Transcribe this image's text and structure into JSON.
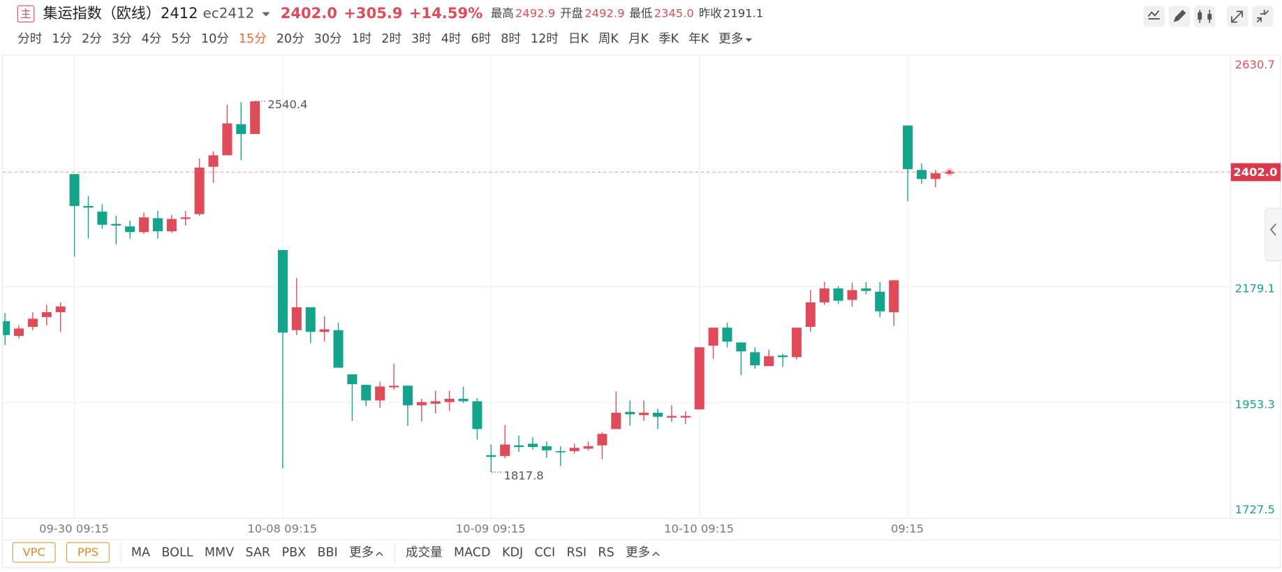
{
  "header": {
    "badge": "主",
    "title": "集运指数（欧线）2412",
    "code": "ec2412"
  },
  "quote": {
    "last": {
      "value": 2402.0,
      "label": "2402.0"
    },
    "change": "+305.9",
    "change_pct": "+14.59%",
    "high_label": "最高",
    "high": 2492.9,
    "open_label": "开盘",
    "open": 2492.9,
    "low_label": "最低",
    "low": {
      "value": 2345.0,
      "label": "2345.0"
    },
    "prev_close_label": "昨收",
    "prev_close": 2191.1
  },
  "timeframes": [
    "分时",
    "1分",
    "2分",
    "3分",
    "4分",
    "5分",
    "10分",
    "15分",
    "20分",
    "30分",
    "1时",
    "2时",
    "3时",
    "4时",
    "6时",
    "8时",
    "12时",
    "日K",
    "周K",
    "月K",
    "季K",
    "年K",
    "更多"
  ],
  "active_timeframe": "15分",
  "indicators": {
    "boxed": [
      "VPC",
      "PPS"
    ],
    "main": [
      "MA",
      "BOLL",
      "MMV",
      "SAR",
      "PBX",
      "BBI",
      "更多"
    ],
    "sub": [
      "成交量",
      "MACD",
      "KDJ",
      "CCI",
      "RSI",
      "RS",
      "更多"
    ]
  },
  "chart_data": {
    "type": "candlestick",
    "up_color": "#e04b5a",
    "down_color": "#12a58c",
    "grid": true,
    "ylim": [
      1727.5,
      2630.7
    ],
    "yticks": [
      2630.7,
      2179.1,
      1953.3,
      1727.5
    ],
    "categories": [
      null,
      null,
      null,
      null,
      null,
      "09-30 09:15",
      null,
      null,
      null,
      null,
      null,
      null,
      null,
      null,
      null,
      null,
      null,
      null,
      null,
      null,
      "10-08 09:15",
      null,
      null,
      null,
      null,
      null,
      null,
      null,
      null,
      null,
      null,
      null,
      null,
      null,
      null,
      "10-09 09:15",
      null,
      null,
      null,
      null,
      null,
      null,
      null,
      null,
      null,
      null,
      null,
      null,
      null,
      null,
      "10-10 09:15",
      null,
      null,
      null,
      null,
      null,
      null,
      null,
      null,
      null,
      null,
      null,
      null,
      null,
      null,
      "09:15",
      null,
      null,
      null
    ],
    "open": [
      2111.8,
      2083.1,
      2100.7,
      2119.8,
      2129.3,
      2398.3,
      2336.2,
      2325.1,
      2301.2,
      2296.4,
      2285.3,
      2312.3,
      2286.9,
      2310.8,
      2320.3,
      2412.6,
      2434.9,
      2495.4,
      2476.3,
      null,
      2250.3,
      2094.3,
      2138.9,
      2091.1,
      2094.3,
      2008.3,
      1987.7,
      1957.4,
      1982.9,
      1986.1,
      1947.9,
      1951.0,
      1954.2,
      1960.6,
      1955.8,
      1850.8,
      1849.2,
      1869.9,
      1873.1,
      1868.3,
      1858.7,
      1858.7,
      1863.5,
      1869.9,
      1901.7,
      1935.1,
      1928.8,
      1933.5,
      1924.0,
      1924.0,
      1939.9,
      2064.1,
      2099.1,
      2070.4,
      2051.3,
      2024.3,
      2045.0,
      2041.8,
      2100.7,
      2148.4,
      2175.5,
      2153.2,
      2175.5,
      2169.1,
      2129.3,
      2492.9,
      2406.2,
      2388.7,
      2400.4
    ],
    "high": [
      2127.7,
      2103.8,
      2129.3,
      2143.6,
      2148.4,
      2398.3,
      2355.3,
      2339.4,
      2317.1,
      2307.6,
      2323.5,
      2326.7,
      2318.7,
      2326.7,
      2428.5,
      2442.9,
      2533.6,
      2538.3,
      2540.4,
      null,
      2250.3,
      2196.2,
      2138.9,
      2121.3,
      2108.6,
      2008.3,
      1987.7,
      1994.0,
      2029.0,
      1986.1,
      1960.6,
      1976.5,
      1976.5,
      1984.5,
      1962.2,
      1871.5,
      1909.7,
      1889.0,
      1885.8,
      1877.8,
      1868.3,
      1873.1,
      1877.8,
      1895.3,
      1974.9,
      1957.4,
      1957.4,
      1941.5,
      1947.9,
      1936.7,
      2060.9,
      2099.1,
      2108.6,
      2070.4,
      2060.9,
      2056.1,
      2048.1,
      2099.1,
      2172.3,
      2188.2,
      2180.2,
      2186.6,
      2188.2,
      2188.2,
      2191.4,
      2492.9,
      2419.0,
      2406.2,
      2403.6
    ],
    "low": [
      2065.6,
      2078.4,
      2094.3,
      2103.8,
      2091.1,
      2237.5,
      2272.6,
      2291.7,
      2261.4,
      2272.6,
      2282.1,
      2272.6,
      2283.7,
      2298.0,
      2317.1,
      2380.8,
      2434.9,
      2425.3,
      2476.3,
      null,
      1825.3,
      2084.7,
      2068.8,
      2072.0,
      2021.1,
      1917.6,
      1946.3,
      1943.1,
      1978.1,
      1908.1,
      1916.0,
      1932.0,
      1936.7,
      1952.6,
      1881.0,
      1817.8,
      1844.4,
      1857.2,
      1861.9,
      1846.0,
      1830.1,
      1854.0,
      1860.3,
      1842.8,
      1901.7,
      1908.1,
      1917.6,
      1901.7,
      1916.0,
      1911.3,
      1939.9,
      2038.6,
      2060.9,
      2006.8,
      2019.5,
      2024.3,
      2022.7,
      2037.0,
      2091.1,
      2143.6,
      2145.2,
      2140.4,
      2164.3,
      2119.8,
      2102.3,
      2345.0,
      2379.2,
      2372.8,
      2398.8
    ],
    "close": [
      2084.7,
      2097.5,
      2116.6,
      2129.3,
      2140.5,
      2336.2,
      2333.0,
      2299.6,
      2298.0,
      2285.3,
      2313.9,
      2286.9,
      2310.8,
      2313.9,
      2411.0,
      2434.9,
      2497.0,
      2476.3,
      2539.9,
      null,
      2089.5,
      2138.9,
      2091.1,
      2095.9,
      2021.1,
      1989.2,
      1957.4,
      1984.5,
      1986.1,
      1947.9,
      1954.2,
      1955.8,
      1960.6,
      1955.8,
      1901.7,
      1847.6,
      1871.5,
      1866.7,
      1866.7,
      1860.3,
      1857.2,
      1865.1,
      1868.3,
      1892.2,
      1933.5,
      1930.4,
      1933.5,
      1925.6,
      1927.2,
      1927.2,
      2060.9,
      2099.1,
      2072.0,
      2052.9,
      2025.9,
      2043.4,
      2041.8,
      2099.1,
      2148.4,
      2175.5,
      2151.6,
      2172.3,
      2170.7,
      2130.9,
      2191.4,
      2407.8,
      2388.7,
      2399.9,
      2402.0
    ]
  }
}
